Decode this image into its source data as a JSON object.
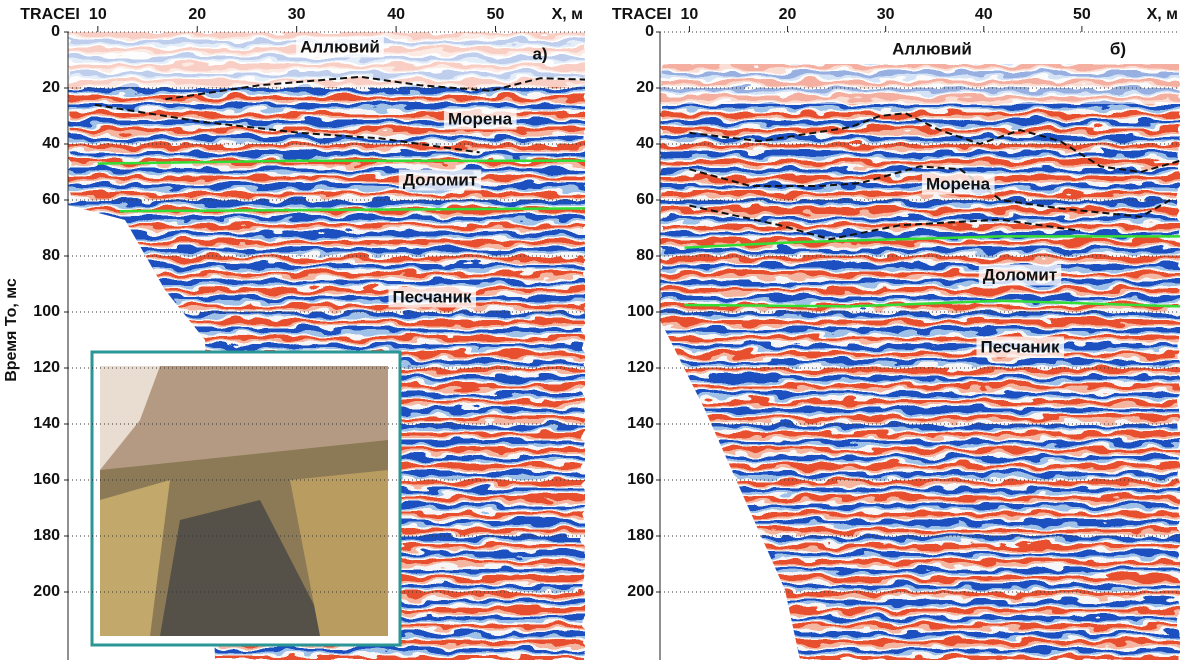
{
  "chart_data": [
    {
      "type": "radargram",
      "panel_label": "а)",
      "trace_label": "TRACEI",
      "xlabel": "X, м",
      "ylabel": "Время То, мс",
      "xlim": [
        7,
        59
      ],
      "xticks": [
        10,
        20,
        30,
        40,
        50
      ],
      "ylim": [
        0,
        220
      ],
      "yticks": [
        0,
        20,
        40,
        60,
        80,
        100,
        120,
        140,
        160,
        180,
        200
      ],
      "grid": true,
      "annotations": [
        "Аллювий",
        "Морена",
        "Доломит",
        "Песчаник"
      ],
      "horizons": [
        {
          "color": "#33dd33",
          "style": "solid",
          "x": [
            10,
            30,
            59
          ],
          "y": [
            47,
            46,
            46
          ]
        },
        {
          "color": "#33dd33",
          "style": "solid",
          "x": [
            12.2,
            35,
            59
          ],
          "y": [
            64,
            63.5,
            63
          ]
        },
        {
          "color": "#111111",
          "style": "dashed",
          "x": [
            16.8,
            26.3,
            36.4,
            42.4,
            49.5,
            54.5,
            59
          ],
          "y": [
            24,
            19,
            16,
            19,
            21,
            16.5,
            17
          ]
        },
        {
          "color": "#111111",
          "style": "dashed",
          "x": [
            9.7,
            20.3,
            30.3,
            38.4,
            48.4
          ],
          "y": [
            26,
            32,
            36,
            38,
            43
          ]
        }
      ]
    },
    {
      "type": "radargram",
      "panel_label": "б)",
      "trace_label": "TRACEI",
      "xlabel": "X, м",
      "xlim": [
        7,
        60
      ],
      "xticks": [
        10,
        20,
        30,
        40,
        50
      ],
      "ylim": [
        0,
        220
      ],
      "yticks": [
        0,
        20,
        40,
        60,
        80,
        100,
        120,
        140,
        160,
        180,
        200
      ],
      "grid": true,
      "annotations": [
        "Аллювий",
        "Морена",
        "Доломит",
        "Песчаник"
      ],
      "horizons": [
        {
          "color": "#33dd33",
          "style": "solid",
          "x": [
            9.5,
            21.3,
            31.5,
            41.7,
            60
          ],
          "y": [
            77,
            75,
            74,
            73,
            73
          ]
        },
        {
          "color": "#33dd33",
          "style": "solid",
          "x": [
            9.5,
            26.4,
            41.7,
            60
          ],
          "y": [
            97.5,
            98,
            96,
            98
          ]
        },
        {
          "color": "#111111",
          "style": "dashed",
          "x": [
            10,
            17.2,
            26.4,
            29.4,
            32,
            35.5,
            39.6,
            43.7,
            47.8,
            51.9,
            56,
            60
          ],
          "y": [
            36,
            39,
            34,
            30,
            29,
            35,
            40,
            35,
            39,
            48,
            50,
            46
          ]
        },
        {
          "color": "#111111",
          "style": "dashed",
          "x": [
            10,
            16.2,
            23.3,
            27.4,
            33.5,
            37.6,
            41.7,
            47.8,
            56,
            59
          ],
          "y": [
            49,
            55,
            55,
            54,
            48,
            49,
            60,
            63,
            66,
            60
          ]
        },
        {
          "color": "#111111",
          "style": "dashed",
          "x": [
            10,
            19.2,
            24.3,
            31.5,
            41.7,
            49.8
          ],
          "y": [
            62,
            69,
            74,
            69,
            67,
            71
          ]
        }
      ]
    }
  ]
}
